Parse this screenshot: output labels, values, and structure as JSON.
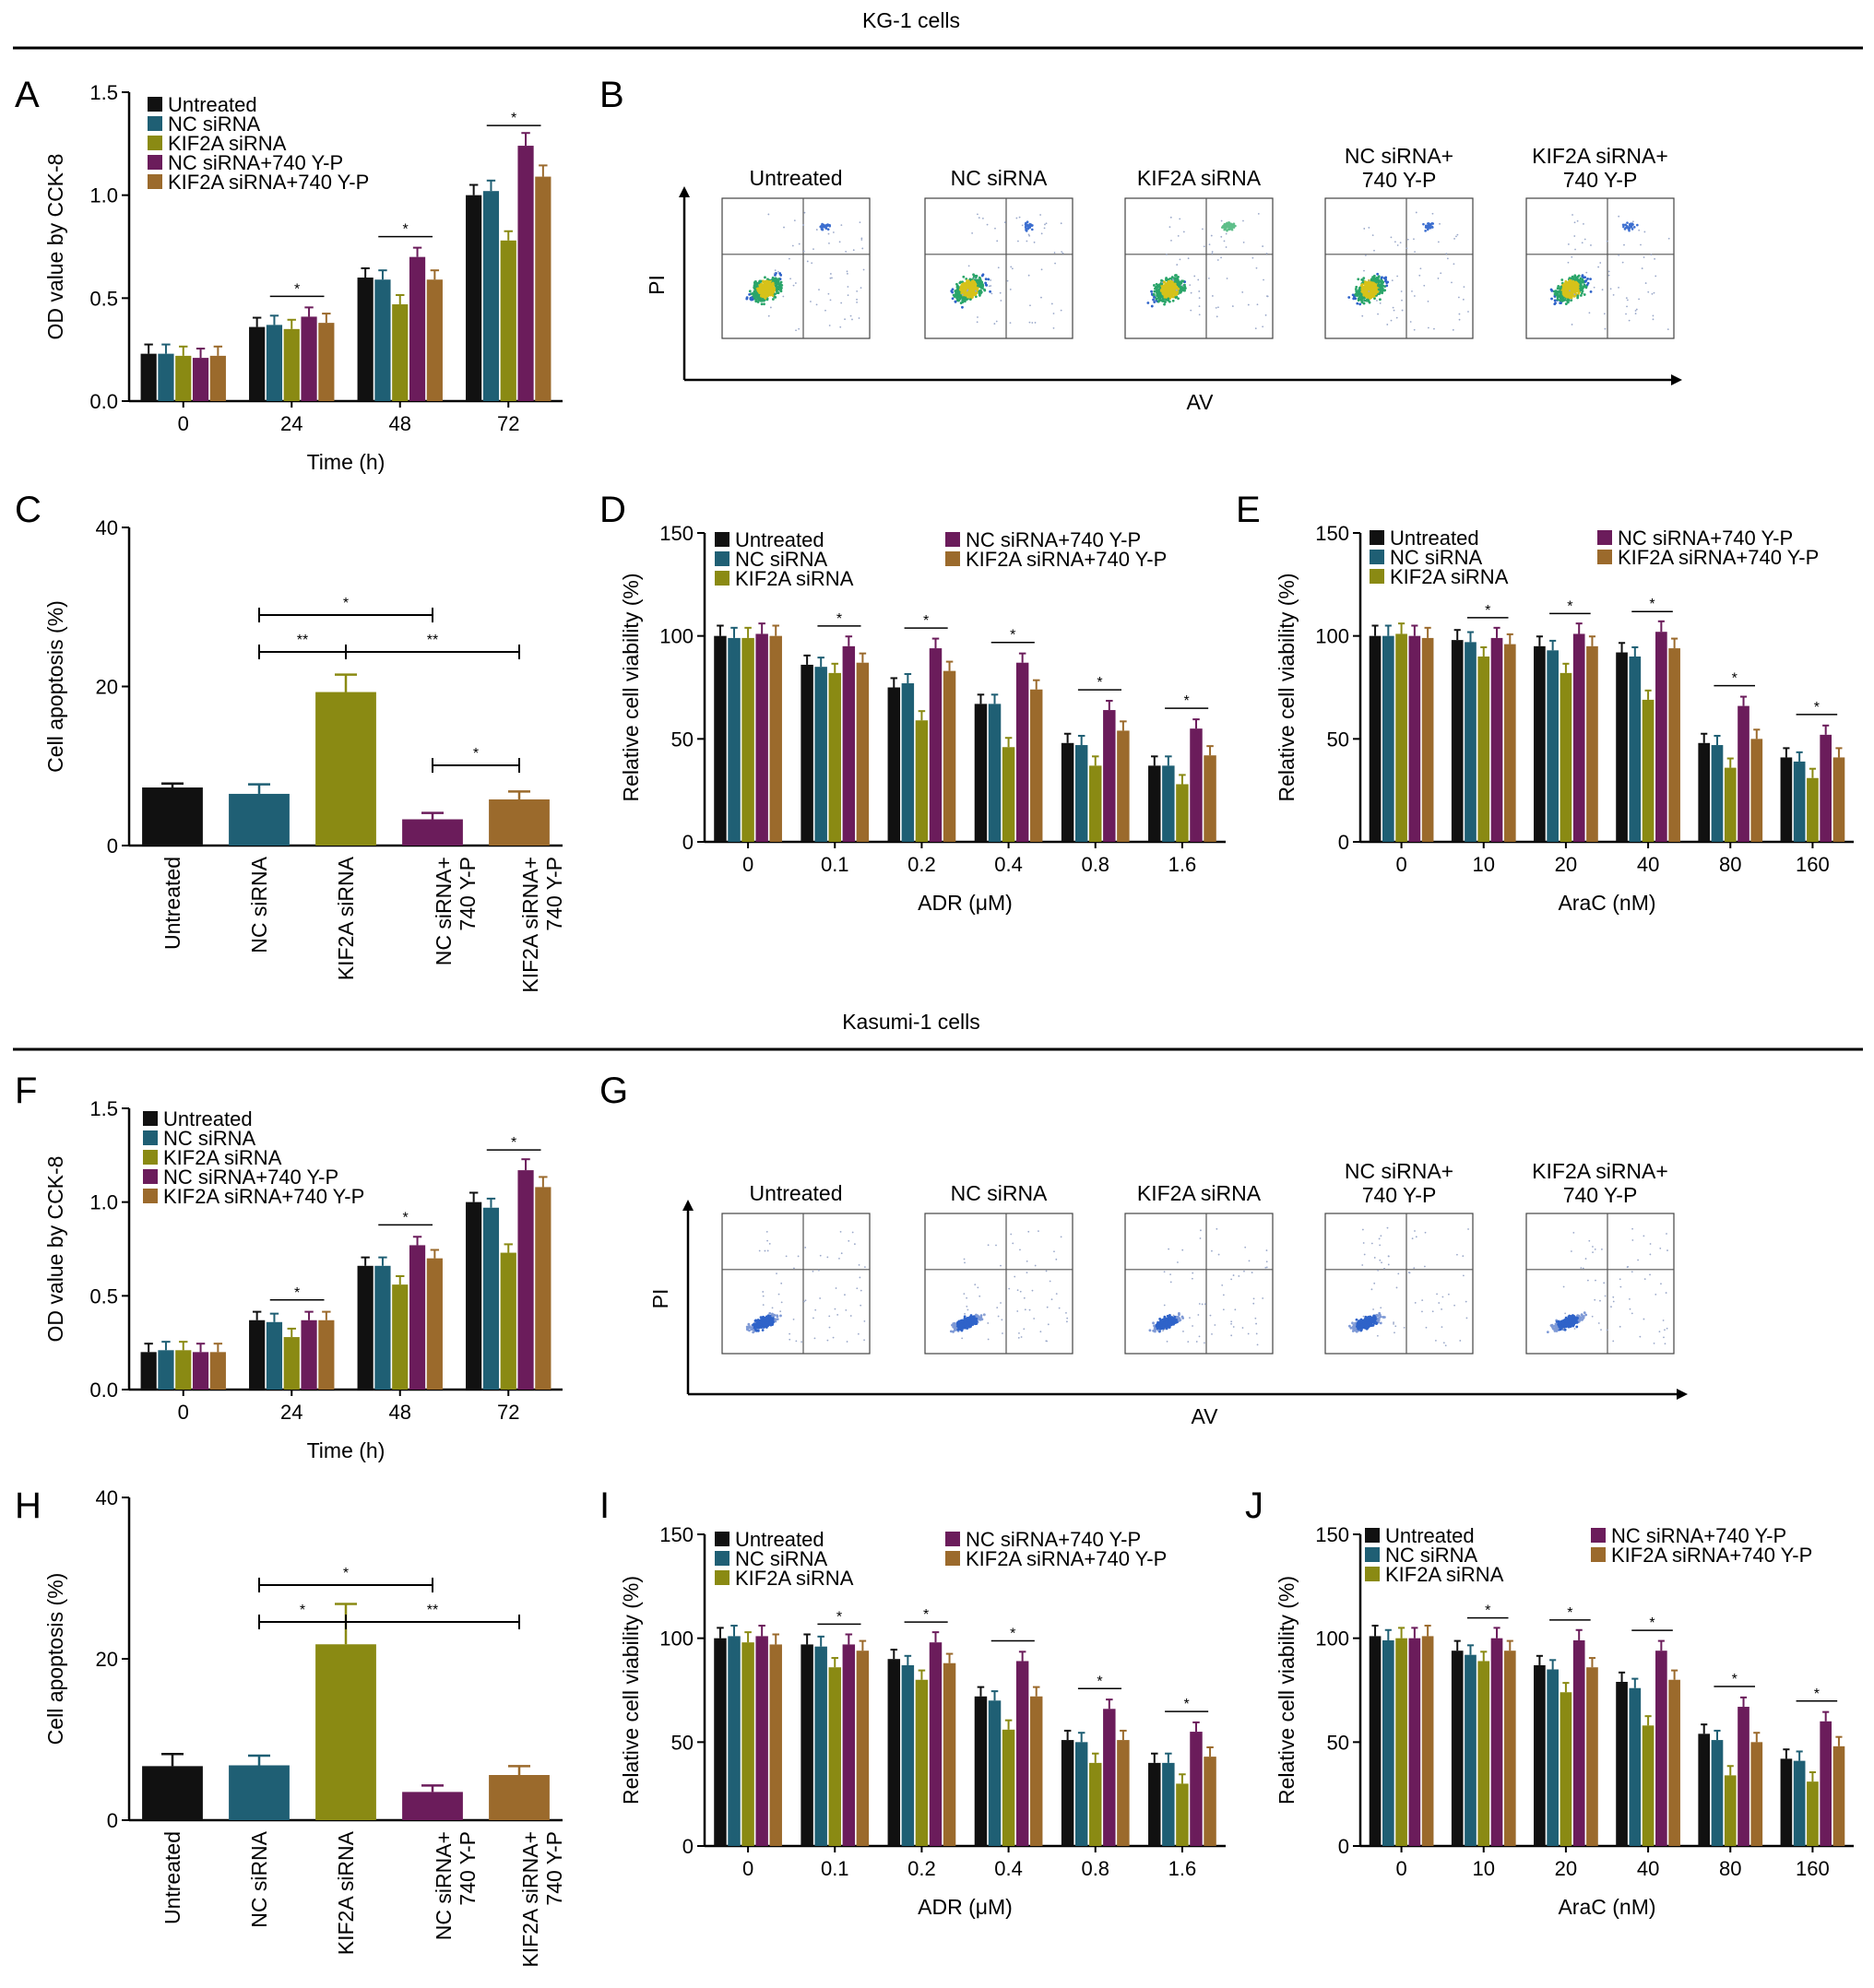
{
  "colors": {
    "Untreated": "#111111",
    "NC siRNA": "#1f5f74",
    "KIF2A siRNA": "#8a8a13",
    "NC siRNA+740 Y-P": "#6b1c5b",
    "KIF2A siRNA+740 Y-P": "#9b6a2c"
  },
  "sections": {
    "kg1": "KG-1 cells",
    "kasumi": "Kasumi-1 cells"
  },
  "panel_letters": {
    "A": "A",
    "B": "B",
    "C": "C",
    "D": "D",
    "E": "E",
    "F": "F",
    "G": "G",
    "H": "H",
    "I": "I",
    "J": "J"
  },
  "flow": {
    "x_label": "AV",
    "y_label": "PI",
    "plots": [
      "Untreated",
      "NC siRNA",
      "KIF2A siRNA",
      "NC siRNA+|740 Y-P",
      "KIF2A siRNA+|740 Y-P"
    ]
  },
  "chart_data": [
    {
      "panel": "A",
      "type": "bar",
      "categories": [
        "0",
        "24",
        "48",
        "72"
      ],
      "xlabel": "Time (h)",
      "ylabel": "OD value by CCK-8",
      "ylim": [
        0,
        1.5
      ],
      "yticks": [
        "0.0",
        "0.5",
        "1.0",
        "1.5"
      ],
      "legend": "top-left",
      "series": [
        {
          "name": "Untreated",
          "values": [
            0.23,
            0.36,
            0.6,
            1.0
          ]
        },
        {
          "name": "NC siRNA",
          "values": [
            0.23,
            0.37,
            0.59,
            1.02
          ]
        },
        {
          "name": "KIF2A siRNA",
          "values": [
            0.22,
            0.35,
            0.47,
            0.78
          ]
        },
        {
          "name": "NC siRNA+740 Y-P",
          "values": [
            0.21,
            0.41,
            0.7,
            1.24
          ]
        },
        {
          "name": "KIF2A siRNA+740 Y-P",
          "values": [
            0.22,
            0.38,
            0.59,
            1.09
          ]
        }
      ]
    },
    {
      "panel": "C",
      "type": "bar",
      "categories": [
        "Untreated",
        "NC siRNA",
        "KIF2A siRNA",
        "NC siRNA+|740 Y-P",
        "KIF2A siRNA+|740 Y-P"
      ],
      "xlabel": "",
      "ylabel": "Cell apoptosis (%)",
      "ylim": [
        0,
        40
      ],
      "yticks": [
        "0",
        "20",
        "40"
      ],
      "values": [
        7.3,
        6.5,
        19.3,
        3.3,
        5.8
      ],
      "errors": [
        0.5,
        1.2,
        2.2,
        0.8,
        1.0
      ],
      "brackets": [
        {
          "from": 1,
          "to": 3,
          "label": "*"
        },
        {
          "from": 1,
          "to": 2,
          "label": "**"
        },
        {
          "from": 2,
          "to": 4,
          "label": "**"
        },
        {
          "from": 3,
          "to": 4,
          "label": "*"
        }
      ]
    },
    {
      "panel": "D",
      "type": "bar",
      "categories": [
        "0",
        "0.1",
        "0.2",
        "0.4",
        "0.8",
        "1.6"
      ],
      "xlabel": "ADR (μM)",
      "ylabel": "Relative cell viability (%)",
      "ylim": [
        0,
        150
      ],
      "yticks": [
        "0",
        "50",
        "100",
        "150"
      ],
      "legend": "top",
      "series": [
        {
          "name": "Untreated",
          "values": [
            100,
            86,
            75,
            67,
            48,
            37
          ]
        },
        {
          "name": "NC siRNA",
          "values": [
            99,
            85,
            77,
            67,
            47,
            37
          ]
        },
        {
          "name": "KIF2A siRNA",
          "values": [
            99,
            82,
            59,
            46,
            37,
            28
          ]
        },
        {
          "name": "NC siRNA+740 Y-P",
          "values": [
            101,
            95,
            94,
            87,
            64,
            55
          ]
        },
        {
          "name": "KIF2A siRNA+740 Y-P",
          "values": [
            100,
            87,
            83,
            74,
            54,
            42
          ]
        }
      ]
    },
    {
      "panel": "E",
      "type": "bar",
      "categories": [
        "0",
        "10",
        "20",
        "40",
        "80",
        "160"
      ],
      "xlabel": "AraC (nM)",
      "ylabel": "Relative cell viability (%)",
      "ylim": [
        0,
        150
      ],
      "yticks": [
        "0",
        "50",
        "100",
        "150"
      ],
      "legend": "top",
      "series": [
        {
          "name": "Untreated",
          "values": [
            100,
            98,
            95,
            92,
            48,
            41
          ]
        },
        {
          "name": "NC siRNA",
          "values": [
            100,
            97,
            93,
            90,
            47,
            39
          ]
        },
        {
          "name": "KIF2A siRNA",
          "values": [
            101,
            90,
            82,
            69,
            36,
            31
          ]
        },
        {
          "name": "NC siRNA+740 Y-P",
          "values": [
            100,
            99,
            101,
            102,
            66,
            52
          ]
        },
        {
          "name": "KIF2A siRNA+740 Y-P",
          "values": [
            99,
            96,
            95,
            94,
            50,
            41
          ]
        }
      ]
    },
    {
      "panel": "F",
      "type": "bar",
      "categories": [
        "0",
        "24",
        "48",
        "72"
      ],
      "xlabel": "Time (h)",
      "ylabel": "OD value by CCK-8",
      "ylim": [
        0,
        1.5
      ],
      "yticks": [
        "0.0",
        "0.5",
        "1.0",
        "1.5"
      ],
      "legend": "top-left",
      "series": [
        {
          "name": "Untreated",
          "values": [
            0.2,
            0.37,
            0.66,
            1.0
          ]
        },
        {
          "name": "NC siRNA",
          "values": [
            0.21,
            0.36,
            0.66,
            0.97
          ]
        },
        {
          "name": "KIF2A siRNA",
          "values": [
            0.21,
            0.28,
            0.56,
            0.73
          ]
        },
        {
          "name": "NC siRNA+740 Y-P",
          "values": [
            0.2,
            0.37,
            0.77,
            1.17
          ]
        },
        {
          "name": "KIF2A siRNA+740 Y-P",
          "values": [
            0.2,
            0.37,
            0.7,
            1.08
          ]
        }
      ]
    },
    {
      "panel": "H",
      "type": "bar",
      "categories": [
        "Untreated",
        "NC siRNA",
        "KIF2A siRNA",
        "NC siRNA+|740 Y-P",
        "KIF2A siRNA+|740 Y-P"
      ],
      "xlabel": "",
      "ylabel": "Cell apoptosis (%)",
      "ylim": [
        0,
        40
      ],
      "yticks": [
        "0",
        "20",
        "40"
      ],
      "values": [
        6.7,
        6.8,
        21.8,
        3.5,
        5.6
      ],
      "errors": [
        1.5,
        1.2,
        5.0,
        0.8,
        1.1
      ],
      "brackets": [
        {
          "from": 1,
          "to": 3,
          "label": "*"
        },
        {
          "from": 1,
          "to": 2,
          "label": "*"
        },
        {
          "from": 2,
          "to": 4,
          "label": "**"
        }
      ]
    },
    {
      "panel": "I",
      "type": "bar",
      "categories": [
        "0",
        "0.1",
        "0.2",
        "0.4",
        "0.8",
        "1.6"
      ],
      "xlabel": "ADR (μM)",
      "ylabel": "Relative cell viability (%)",
      "ylim": [
        0,
        150
      ],
      "yticks": [
        "0",
        "50",
        "100",
        "150"
      ],
      "legend": "top",
      "series": [
        {
          "name": "Untreated",
          "values": [
            100,
            97,
            90,
            72,
            51,
            40
          ]
        },
        {
          "name": "NC siRNA",
          "values": [
            101,
            96,
            87,
            70,
            50,
            40
          ]
        },
        {
          "name": "KIF2A siRNA",
          "values": [
            98,
            86,
            80,
            56,
            40,
            30
          ]
        },
        {
          "name": "NC siRNA+740 Y-P",
          "values": [
            101,
            97,
            98,
            89,
            66,
            55
          ]
        },
        {
          "name": "KIF2A siRNA+740 Y-P",
          "values": [
            97,
            94,
            88,
            72,
            51,
            43
          ]
        }
      ]
    },
    {
      "panel": "J",
      "type": "bar",
      "categories": [
        "0",
        "10",
        "20",
        "40",
        "80",
        "160"
      ],
      "xlabel": "AraC (nM)",
      "ylabel": "Relative cell viability (%)",
      "ylim": [
        0,
        150
      ],
      "yticks": [
        "0",
        "50",
        "100",
        "150"
      ],
      "legend": "top",
      "series": [
        {
          "name": "Untreated",
          "values": [
            101,
            94,
            87,
            79,
            54,
            42
          ]
        },
        {
          "name": "NC siRNA",
          "values": [
            99,
            92,
            85,
            76,
            51,
            41
          ]
        },
        {
          "name": "KIF2A siRNA",
          "values": [
            100,
            89,
            74,
            58,
            34,
            31
          ]
        },
        {
          "name": "NC siRNA+740 Y-P",
          "values": [
            100,
            100,
            99,
            94,
            67,
            60
          ]
        },
        {
          "name": "KIF2A siRNA+740 Y-P",
          "values": [
            101,
            94,
            86,
            80,
            50,
            48
          ]
        }
      ]
    }
  ]
}
